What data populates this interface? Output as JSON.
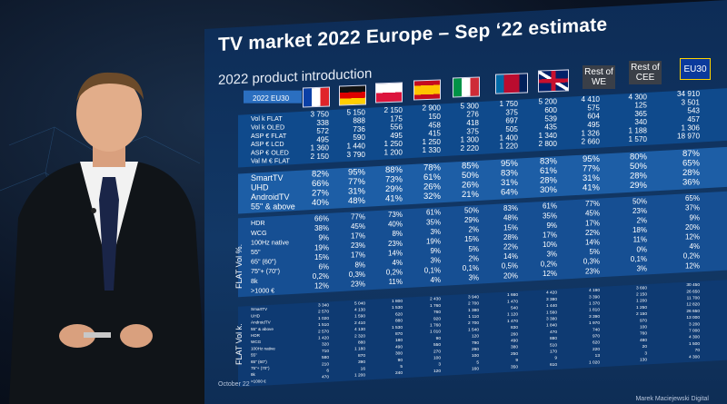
{
  "slide": {
    "title": "TV market 2022 Europe  – Sep ‘22 estimate",
    "subtitle": "2022 product introduction",
    "footer_left": "October 22",
    "footer_right": "Marek Maciejewski  Digital",
    "flat_vol_pct_label": "FLAT Vol %.",
    "flat_vol_k_label": "FLAT Vol k."
  },
  "columns": {
    "corner": "2022 EU30",
    "headers": [
      "",
      "",
      "",
      "",
      "",
      "",
      "",
      "Rest of WE",
      "Rest of CEE",
      "EU30"
    ]
  },
  "colors": {
    "slide_bg": "#123866",
    "panel_light": "#1d5ea6",
    "panel_dark": "#0e3a72",
    "highlight_row": "#2b6fc0",
    "rest_box": "#3a3f48",
    "eu_blue": "#0b3a9c"
  },
  "table_top": {
    "rows": [
      {
        "label": "Vol k FLAT",
        "values": [
          "3 750",
          "5 150",
          "2 150",
          "2 900",
          "5 300",
          "1 750",
          "5 200",
          "4 410",
          "4 300",
          "34 910"
        ]
      },
      {
        "label": "Vol k OLED",
        "values": [
          "338",
          "888",
          "175",
          "150",
          "276",
          "375",
          "600",
          "575",
          "125",
          "3 501"
        ]
      },
      {
        "label": "ASP € FLAT",
        "values": [
          "572",
          "736",
          "556",
          "458",
          "418",
          "697",
          "539",
          "604",
          "365",
          "543"
        ]
      },
      {
        "label": "ASP € LCD",
        "values": [
          "495",
          "590",
          "495",
          "415",
          "375",
          "505",
          "435",
          "495",
          "340",
          "457"
        ]
      },
      {
        "label": "ASP € OLED",
        "values": [
          "1 360",
          "1 440",
          "1 250",
          "1 250",
          "1 300",
          "1 400",
          "1 340",
          "1 326",
          "1 188",
          "1 306"
        ]
      },
      {
        "label": "Val M € FLAT",
        "values": [
          "2 150",
          "3 790",
          "1 200",
          "1 330",
          "2 220",
          "1 220",
          "2 800",
          "2 660",
          "1 570",
          "18 970"
        ]
      }
    ]
  },
  "table_mid": {
    "rows": [
      {
        "label": "SmartTV",
        "values": [
          "82%",
          "95%",
          "88%",
          "78%",
          "85%",
          "95%",
          "83%",
          "95%",
          "80%",
          "87%"
        ]
      },
      {
        "label": "UHD",
        "values": [
          "66%",
          "77%",
          "73%",
          "61%",
          "50%",
          "83%",
          "61%",
          "77%",
          "50%",
          "65%"
        ]
      },
      {
        "label": "AndroidTV",
        "values": [
          "27%",
          "31%",
          "29%",
          "26%",
          "26%",
          "31%",
          "28%",
          "31%",
          "28%",
          "28%"
        ]
      },
      {
        "label": "55\" & above",
        "values": [
          "40%",
          "48%",
          "41%",
          "32%",
          "21%",
          "64%",
          "30%",
          "41%",
          "29%",
          "36%"
        ]
      }
    ]
  },
  "table_pct": {
    "rows": [
      {
        "label": "HDR",
        "values": [
          "66%",
          "77%",
          "73%",
          "61%",
          "50%",
          "83%",
          "61%",
          "77%",
          "50%",
          "65%"
        ]
      },
      {
        "label": "WCG",
        "values": [
          "38%",
          "45%",
          "40%",
          "35%",
          "29%",
          "48%",
          "35%",
          "45%",
          "23%",
          "37%"
        ]
      },
      {
        "label": "100Hz native",
        "values": [
          "9%",
          "17%",
          "8%",
          "3%",
          "2%",
          "15%",
          "9%",
          "17%",
          "2%",
          "9%"
        ]
      },
      {
        "label": "55\"",
        "values": [
          "19%",
          "23%",
          "23%",
          "19%",
          "15%",
          "28%",
          "17%",
          "22%",
          "18%",
          "20%"
        ]
      },
      {
        "label": "65\" (60\")",
        "values": [
          "15%",
          "17%",
          "14%",
          "9%",
          "5%",
          "22%",
          "10%",
          "14%",
          "11%",
          "12%"
        ]
      },
      {
        "label": "75\"+ (70\")",
        "values": [
          "6%",
          "8%",
          "4%",
          "3%",
          "2%",
          "14%",
          "3%",
          "5%",
          "0%",
          "4%"
        ]
      },
      {
        "label": "8k",
        "values": [
          "0,2%",
          "0,3%",
          "0,2%",
          "0,1%",
          "0,1%",
          "0,5%",
          "0,2%",
          "0,3%",
          "0,1%",
          "0,2%"
        ]
      },
      {
        "label": ">1000 €",
        "values": [
          "12%",
          "23%",
          "11%",
          "4%",
          "3%",
          "20%",
          "12%",
          "23%",
          "3%",
          "12%"
        ]
      }
    ]
  },
  "table_volk": {
    "rows": [
      {
        "label": "SmartTV",
        "values": [
          "3 340",
          "5 040",
          "1 800",
          "2 430",
          "3 940",
          "1 660",
          "4 420",
          "4 190",
          "3 660",
          "30 450"
        ]
      },
      {
        "label": "UHD",
        "values": [
          "2 570",
          "4 130",
          "1 530",
          "1 760",
          "2 700",
          "1 470",
          "3 380",
          "3 390",
          "2 150",
          "26 650"
        ]
      },
      {
        "label": "AndroidTV",
        "values": [
          "1 020",
          "1 590",
          "620",
          "760",
          "1 380",
          "540",
          "1 440",
          "1 370",
          "1 200",
          "11 700"
        ]
      },
      {
        "label": "55\" & above",
        "values": [
          "1 510",
          "2 410",
          "880",
          "920",
          "1 110",
          "1 120",
          "1 560",
          "1 810",
          "1 250",
          "12 820"
        ]
      },
      {
        "label": "HDR",
        "values": [
          "2 570",
          "4 130",
          "1 530",
          "1 760",
          "2 700",
          "1 470",
          "3 380",
          "3 390",
          "2 150",
          "26 650"
        ]
      },
      {
        "label": "WCG",
        "values": [
          "1 420",
          "2 320",
          "870",
          "1 010",
          "1 540",
          "830",
          "1 840",
          "1 970",
          "970",
          "13 000"
        ]
      },
      {
        "label": "100Hz native",
        "values": [
          "320",
          "880",
          "180",
          "90",
          "120",
          "260",
          "470",
          "740",
          "100",
          "3 200"
        ]
      },
      {
        "label": "55\"",
        "values": [
          "710",
          "1 180",
          "490",
          "550",
          "790",
          "490",
          "880",
          "970",
          "760",
          "7 000"
        ]
      },
      {
        "label": "65\" (60\")",
        "values": [
          "580",
          "870",
          "300",
          "270",
          "290",
          "380",
          "510",
          "620",
          "480",
          "4 300"
        ]
      },
      {
        "label": "75\"+ (70\")",
        "values": [
          "210",
          "390",
          "90",
          "100",
          "100",
          "250",
          "170",
          "220",
          "20",
          "1 500"
        ]
      },
      {
        "label": "8k",
        "values": [
          "6",
          "16",
          "5",
          "3",
          "5",
          "9",
          "9",
          "13",
          "3",
          "70"
        ]
      },
      {
        "label": ">1000 €",
        "values": [
          "470",
          "1 200",
          "240",
          "120",
          "160",
          "350",
          "610",
          "1 020",
          "130",
          "4 300"
        ]
      }
    ]
  }
}
